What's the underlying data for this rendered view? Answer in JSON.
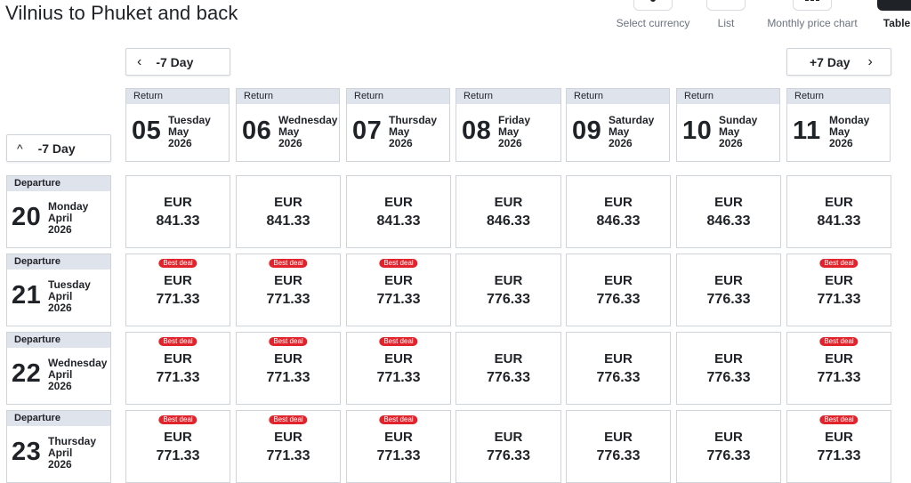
{
  "title": "Vilnius to Phuket and back",
  "views": {
    "currency": "Select currency",
    "list": "List",
    "monthly": "Monthly price chart",
    "table": "Table"
  },
  "nav": {
    "prev_return": "-7 Day",
    "next_return": "+7 Day",
    "prev_departure": "-7 Day"
  },
  "return_label": "Return",
  "departure_label": "Departure",
  "best_deal_label": "Best deal",
  "currency": "EUR",
  "returns": [
    {
      "day": "05",
      "weekday": "Tuesday",
      "month": "May",
      "year": "2026"
    },
    {
      "day": "06",
      "weekday": "Wednesday",
      "month": "May",
      "year": "2026"
    },
    {
      "day": "07",
      "weekday": "Thursday",
      "month": "May",
      "year": "2026"
    },
    {
      "day": "08",
      "weekday": "Friday",
      "month": "May",
      "year": "2026"
    },
    {
      "day": "09",
      "weekday": "Saturday",
      "month": "May",
      "year": "2026"
    },
    {
      "day": "10",
      "weekday": "Sunday",
      "month": "May",
      "year": "2026"
    },
    {
      "day": "11",
      "weekday": "Monday",
      "month": "May",
      "year": "2026"
    }
  ],
  "departures": [
    {
      "day": "20",
      "weekday": "Monday",
      "month": "April",
      "year": "2026"
    },
    {
      "day": "21",
      "weekday": "Tuesday",
      "month": "April",
      "year": "2026"
    },
    {
      "day": "22",
      "weekday": "Wednesday",
      "month": "April",
      "year": "2026"
    },
    {
      "day": "23",
      "weekday": "Thursday",
      "month": "April",
      "year": "2026"
    }
  ],
  "prices": [
    [
      {
        "price": "841.33",
        "best": false
      },
      {
        "price": "841.33",
        "best": false
      },
      {
        "price": "841.33",
        "best": false
      },
      {
        "price": "846.33",
        "best": false
      },
      {
        "price": "846.33",
        "best": false
      },
      {
        "price": "846.33",
        "best": false
      },
      {
        "price": "841.33",
        "best": false
      }
    ],
    [
      {
        "price": "771.33",
        "best": true
      },
      {
        "price": "771.33",
        "best": true
      },
      {
        "price": "771.33",
        "best": true
      },
      {
        "price": "776.33",
        "best": false
      },
      {
        "price": "776.33",
        "best": false
      },
      {
        "price": "776.33",
        "best": false
      },
      {
        "price": "771.33",
        "best": true
      }
    ],
    [
      {
        "price": "771.33",
        "best": true
      },
      {
        "price": "771.33",
        "best": true
      },
      {
        "price": "771.33",
        "best": true
      },
      {
        "price": "776.33",
        "best": false
      },
      {
        "price": "776.33",
        "best": false
      },
      {
        "price": "776.33",
        "best": false
      },
      {
        "price": "771.33",
        "best": true
      }
    ],
    [
      {
        "price": "771.33",
        "best": true
      },
      {
        "price": "771.33",
        "best": true
      },
      {
        "price": "771.33",
        "best": true
      },
      {
        "price": "776.33",
        "best": false
      },
      {
        "price": "776.33",
        "best": false
      },
      {
        "price": "776.33",
        "best": false
      },
      {
        "price": "771.33",
        "best": true
      }
    ]
  ],
  "colors": {
    "best_deal": "#e2232b",
    "header_tag": "#dfe4ec",
    "border": "#cfd4da"
  }
}
